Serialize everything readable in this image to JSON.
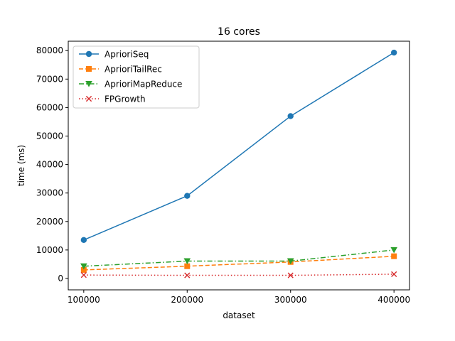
{
  "chart_data": {
    "type": "line",
    "title": "16 cores",
    "xlabel": "dataset",
    "ylabel": "time (ms)",
    "x": [
      100000,
      200000,
      300000,
      400000
    ],
    "x_ticks": [
      100000,
      200000,
      300000,
      400000
    ],
    "y_ticks": [
      0,
      10000,
      20000,
      30000,
      40000,
      50000,
      60000,
      70000,
      80000
    ],
    "xlim": [
      85000,
      415000
    ],
    "ylim": [
      -4000,
      83300
    ],
    "grid": false,
    "legend_position": "top-left",
    "series": [
      {
        "name": "AprioriSeq",
        "values": [
          13500,
          29000,
          57000,
          79300
        ],
        "color": "#1f77b4",
        "marker": "circle",
        "linestyle": "solid"
      },
      {
        "name": "AprioriTailRec",
        "values": [
          3000,
          4300,
          5800,
          7800
        ],
        "color": "#ff7f0e",
        "marker": "square",
        "linestyle": "dashed"
      },
      {
        "name": "AprioriMapReduce",
        "values": [
          4300,
          6100,
          6100,
          10000
        ],
        "color": "#2ca02c",
        "marker": "triangle-down",
        "linestyle": "dashdot"
      },
      {
        "name": "FPGrowth",
        "values": [
          1200,
          1100,
          1100,
          1500
        ],
        "color": "#d62728",
        "marker": "x",
        "linestyle": "dotted"
      }
    ]
  }
}
